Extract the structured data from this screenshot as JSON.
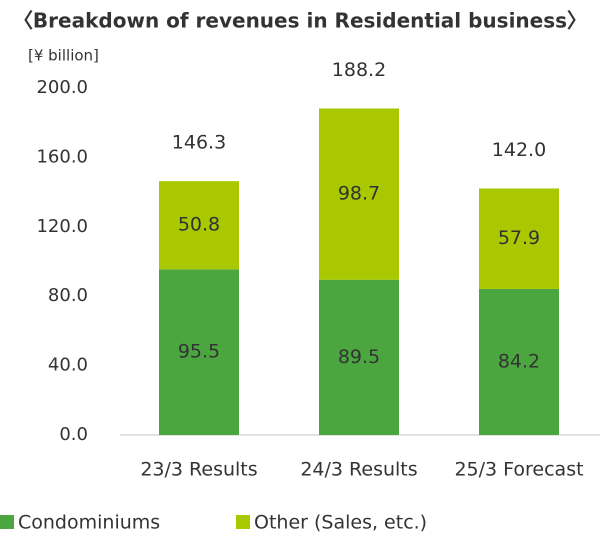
{
  "chart_data": {
    "type": "stacked_bar",
    "title": "〈Breakdown of revenues in Residential business〉",
    "y_axis_label": "[¥ billion]",
    "categories": [
      "23/3 Results",
      "24/3 Results",
      "25/3 Forecast"
    ],
    "series": [
      {
        "name": "Condominiums",
        "color": "#4ba63f",
        "values": [
          95.5,
          89.5,
          84.2
        ]
      },
      {
        "name": "Other (Sales, etc.)",
        "color": "#a9c800",
        "values": [
          50.8,
          98.7,
          57.9
        ]
      }
    ],
    "totals": [
      146.3,
      188.2,
      142.0
    ],
    "total_labels": [
      "146.3",
      "188.2",
      "142.0"
    ],
    "ylim": [
      0,
      200
    ],
    "yticks": [
      {
        "value": 0,
        "label": "0.0"
      },
      {
        "value": 40,
        "label": "40.0"
      },
      {
        "value": 80,
        "label": "80.0"
      },
      {
        "value": 120,
        "label": "120.0"
      },
      {
        "value": 160,
        "label": "160.0"
      },
      {
        "value": 200,
        "label": "200.0"
      }
    ],
    "grid": false,
    "legend": "bottom"
  }
}
